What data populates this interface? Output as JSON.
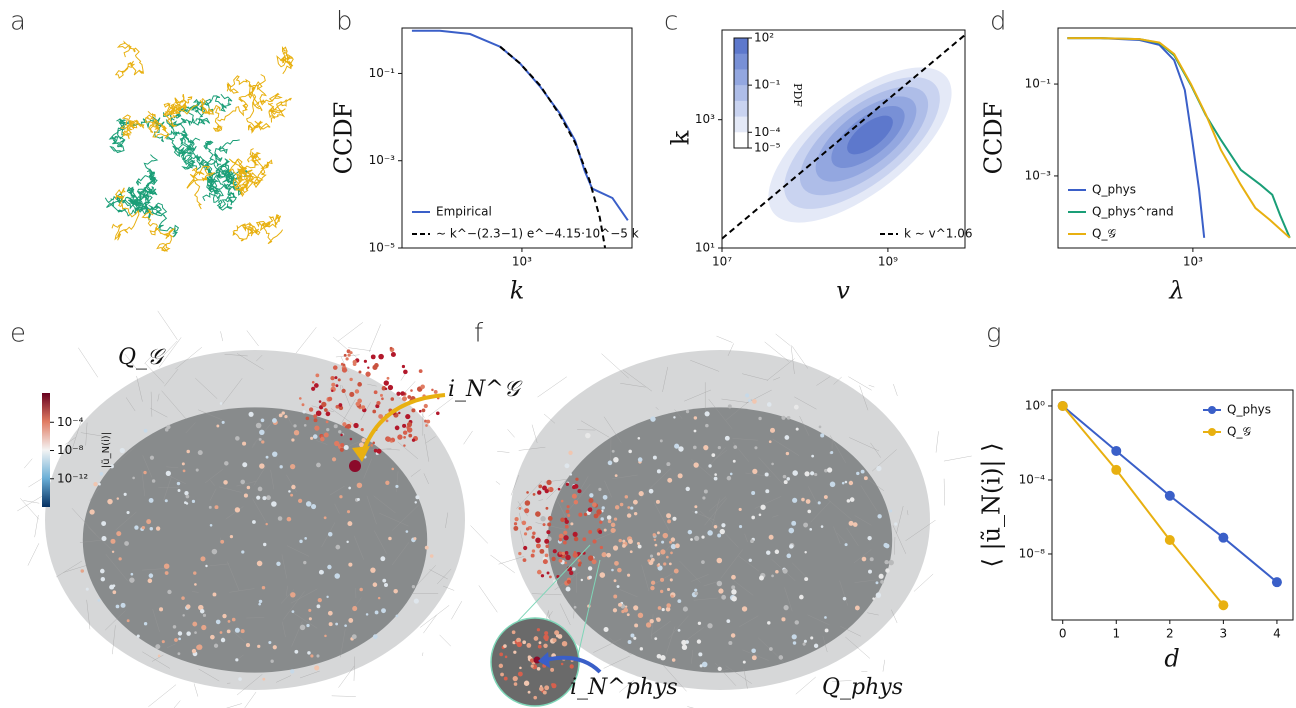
{
  "panel_labels": [
    "a",
    "b",
    "c",
    "d",
    "e",
    "f",
    "g"
  ],
  "chart_data": [
    {
      "type": "line",
      "xlabel": "k",
      "ylabel": "CCDF",
      "xscale": "log",
      "yscale": "log",
      "xlim": [
        120,
        7000
      ],
      "ylim": [
        1e-05,
        1.1
      ],
      "xticks": [
        {
          "value": 1000,
          "label": "10³"
        }
      ],
      "yticks": [
        {
          "value": 0.1,
          "label": "10⁻¹"
        },
        {
          "value": 0.001,
          "label": "10⁻³"
        },
        {
          "value": 1e-05,
          "label": "10⁻⁵"
        }
      ],
      "legend": "lower left",
      "series": [
        {
          "name": "Empirical",
          "color": "#3a5fc8",
          "style": "solid",
          "x": [
            143,
            234,
            400,
            680,
            966,
            1380,
            1960,
            2560,
            3030,
            3460,
            4950,
            6500
          ],
          "values": [
            0.95,
            0.95,
            0.8,
            0.41,
            0.17,
            0.05,
            0.012,
            0.0029,
            0.00059,
            0.00023,
            0.00014,
            4.3e-05
          ]
        },
        {
          "name": "∼ k^−(2.3−1) e^−4.15·10^−5 k",
          "color": "#000000",
          "style": "dashed",
          "x": [
            680,
            966,
            1380,
            1960,
            2560,
            3300,
            3960,
            4350
          ],
          "values": [
            0.41,
            0.17,
            0.053,
            0.011,
            0.0026,
            0.00036,
            5e-05,
            1e-05
          ]
        }
      ]
    },
    {
      "type": "density",
      "xlabel": "v",
      "ylabel": "k",
      "xscale": "log",
      "yscale": "log",
      "xlim": [
        10000000,
        8500000000
      ],
      "ylim": [
        10,
        25000
      ],
      "xticks": [
        {
          "value": 10000000,
          "label": "10⁷"
        },
        {
          "value": 1000000000,
          "label": "10⁹"
        }
      ],
      "yticks": [
        {
          "value": 10,
          "label": "10¹"
        },
        {
          "value": 1000,
          "label": "10³"
        }
      ],
      "legend": "lower right",
      "colorbar": {
        "label": "PDF",
        "lim": [
          1e-05,
          100
        ],
        "ticks": [
          {
            "value": 100,
            "label": "10²"
          },
          {
            "value": 0.1,
            "label": "10⁻¹"
          },
          {
            "value": 0.0001,
            "label": "10⁻⁴"
          },
          {
            "value": 1e-05,
            "label": "10⁻⁵"
          }
        ]
      },
      "series": [
        {
          "name": "k ∼ v^1.06",
          "color": "#000000",
          "style": "dashed",
          "x": [
            10000000,
            8500000000
          ],
          "values": [
            14,
            21000
          ]
        }
      ]
    },
    {
      "type": "line",
      "xlabel": "λ",
      "ylabel": "CCDF",
      "xscale": "log",
      "yscale": "log",
      "xlim": [
        40,
        12000
      ],
      "ylim": [
        2.7e-05,
        1.66
      ],
      "xticks": [
        {
          "value": 1000,
          "label": "10³"
        }
      ],
      "yticks": [
        {
          "value": 0.1,
          "label": "10⁻¹"
        },
        {
          "value": 0.001,
          "label": "10⁻³"
        }
      ],
      "legend": "lower left",
      "series": [
        {
          "name": "Q_phys",
          "color": "#3a5fc8",
          "style": "solid",
          "x": [
            50,
            110,
            280,
            450,
            640,
            825,
            985,
            1160,
            1310
          ],
          "values": [
            1,
            1,
            0.91,
            0.71,
            0.33,
            0.074,
            0.006,
            0.0005,
            4.5e-05
          ]
        },
        {
          "name": "Q_phys^rand",
          "color": "#1a9e77",
          "style": "solid",
          "x": [
            50,
            110,
            280,
            450,
            640,
            955,
            1360,
            1950,
            3140,
            5030,
            6650,
            8020,
            10100
          ],
          "values": [
            1,
            1,
            0.95,
            0.78,
            0.42,
            0.095,
            0.021,
            0.0061,
            0.00135,
            0.00064,
            0.00039,
            0.00014,
            4.5e-05
          ]
        },
        {
          "name": "Q_𝒢",
          "color": "#e8b010",
          "style": "solid",
          "x": [
            50,
            110,
            280,
            450,
            640,
            955,
            1360,
            1950,
            3140,
            4450,
            6300,
            10100
          ],
          "values": [
            1,
            1,
            0.95,
            0.8,
            0.45,
            0.1,
            0.022,
            0.0037,
            0.00064,
            0.0002,
            0.00011,
            4.5e-05
          ]
        }
      ]
    },
    {
      "type": "line",
      "markers": true,
      "xlabel": "d",
      "ylabel": "⟨ |ũ_N(i)| ⟩",
      "xscale": "linear",
      "yscale": "log",
      "xlim": [
        -0.2,
        4.3
      ],
      "ylim": [
        2.7e-12,
        7.3
      ],
      "xticks": [
        0,
        1,
        2,
        3,
        4
      ],
      "yticks": [
        {
          "value": 1,
          "label": "10⁰"
        },
        {
          "value": 0.0001,
          "label": "10⁻⁴"
        },
        {
          "value": 1e-08,
          "label": "10⁻⁸"
        }
      ],
      "legend": "upper right",
      "series": [
        {
          "name": "Q_phys",
          "color": "#3a5fc8",
          "style": "solid",
          "x": [
            0,
            1,
            2,
            3,
            4
          ],
          "values": [
            1,
            0.0037,
            1.4e-05,
            7.6e-08,
            3e-10
          ]
        },
        {
          "name": "Q_𝒢",
          "color": "#e8b010",
          "style": "solid",
          "x": [
            0,
            1,
            2,
            3
          ],
          "values": [
            1,
            0.00035,
            5.7e-08,
            1.7e-11
          ]
        }
      ]
    }
  ],
  "network_panels": [
    {
      "annotations": [
        "Q_𝒢",
        "i_N^𝒢"
      ],
      "colorbar": {
        "label": "|ũ_N(i)|",
        "lim": [
          1e-16,
          1.4
        ],
        "ticks": [
          {
            "value": 0.0001,
            "label": "10⁻⁴"
          },
          {
            "value": 1e-08,
            "label": "10⁻⁸"
          },
          {
            "value": 1e-12,
            "label": "10⁻¹²"
          }
        ]
      }
    },
    {
      "annotations": [
        "i_N^phys",
        "Q_phys"
      ]
    }
  ]
}
